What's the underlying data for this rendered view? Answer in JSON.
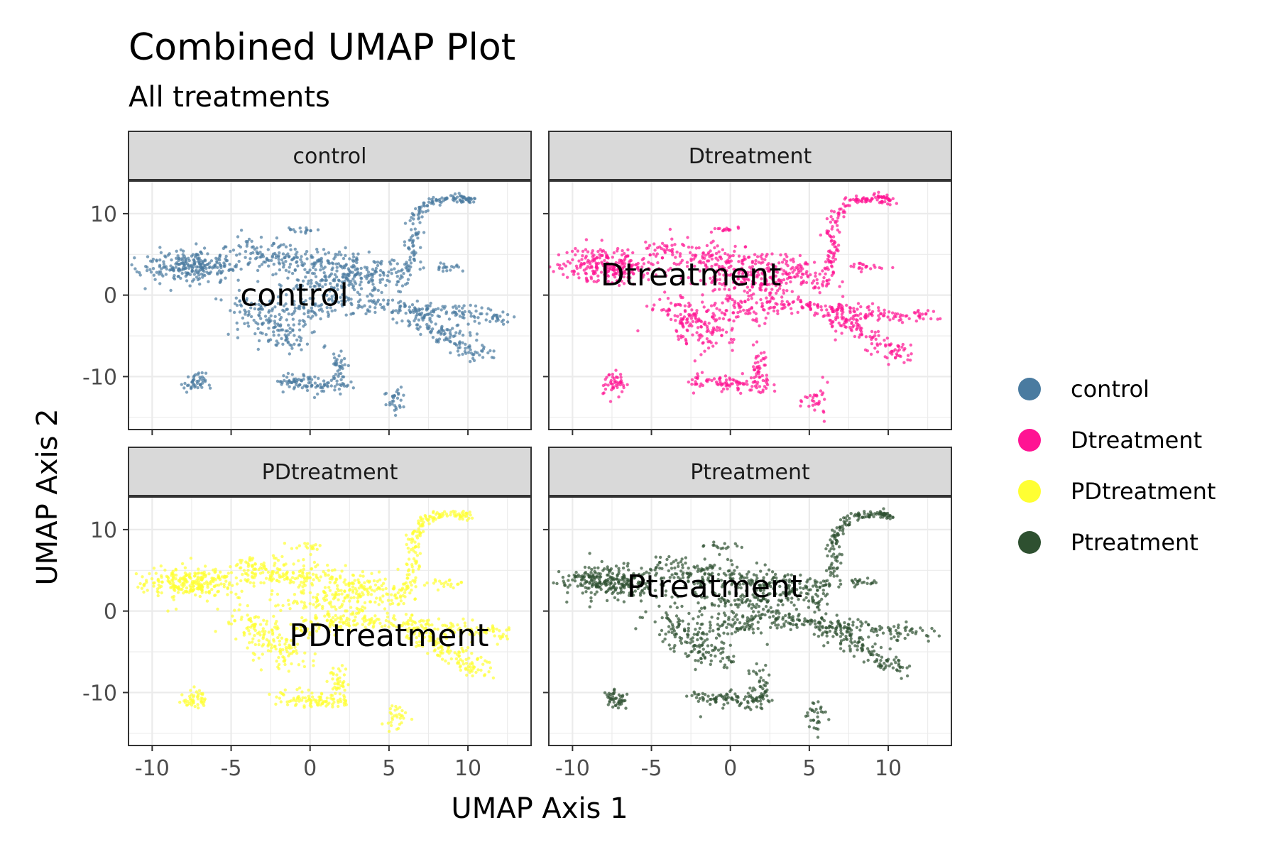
{
  "chart_data": {
    "type": "scatter",
    "title": "Combined UMAP Plot",
    "subtitle": "All treatments",
    "xlabel": "UMAP Axis 1",
    "ylabel": "UMAP Axis 2",
    "xlim": [
      -11.5,
      14
    ],
    "ylim": [
      -16.5,
      14
    ],
    "x_ticks": [
      -10,
      -5,
      0,
      5,
      10
    ],
    "x_tick_labels": [
      "-10",
      "-5",
      "0",
      "5",
      "10"
    ],
    "y_ticks": [
      -10,
      0,
      10
    ],
    "y_tick_labels": [
      "-10",
      "0",
      "10"
    ],
    "grid": true,
    "facets": [
      "control",
      "Dtreatment",
      "PDtreatment",
      "Ptreatment"
    ],
    "legend": {
      "position": "right",
      "entries": [
        {
          "name": "control",
          "color": "#4a7ba0"
        },
        {
          "name": "Dtreatment",
          "color": "#ff1493"
        },
        {
          "name": "PDtreatment",
          "color": "#ffff33"
        },
        {
          "name": "Ptreatment",
          "color": "#2e5030"
        }
      ]
    },
    "panel_labels": [
      {
        "facet": "control",
        "text": "control",
        "x": -1,
        "y": 0
      },
      {
        "facet": "Dtreatment",
        "text": "Dtreatment",
        "x": -2.5,
        "y": 2.5
      },
      {
        "facet": "PDtreatment",
        "text": "PDtreatment",
        "x": 5,
        "y": -3
      },
      {
        "facet": "Ptreatment",
        "text": "Ptreatment",
        "x": -1,
        "y": 3
      }
    ],
    "clusters": [
      {
        "name": "main-blob",
        "x": -7.5,
        "y": 3.5,
        "sx": 1.6,
        "sy": 1.0,
        "n": 260
      },
      {
        "name": "upper-band",
        "from": [
          -4.5,
          5.5
        ],
        "to": [
          5.5,
          2.5
        ],
        "spread": 0.9,
        "n": 260
      },
      {
        "name": "central-mass",
        "x": 1.5,
        "y": 1.5,
        "sx": 2.0,
        "sy": 0.9,
        "n": 120
      },
      {
        "name": "lower-arc",
        "from": [
          -4,
          -1
        ],
        "to": [
          -1,
          -6
        ],
        "spread": 0.9,
        "n": 150
      },
      {
        "name": "lower-mid",
        "from": [
          -1,
          -2
        ],
        "to": [
          3,
          -1
        ],
        "spread": 0.8,
        "n": 100
      },
      {
        "name": "right-arm",
        "from": [
          3,
          -1
        ],
        "to": [
          12.5,
          -2.8
        ],
        "spread": 0.5,
        "n": 140
      },
      {
        "name": "lower-right-arm",
        "from": [
          6,
          -2
        ],
        "to": [
          11,
          -7.5
        ],
        "spread": 0.6,
        "n": 130
      },
      {
        "name": "upper-hook",
        "path": [
          [
            5.5,
            0.5
          ],
          [
            6.5,
            5
          ],
          [
            6.5,
            9
          ],
          [
            7.5,
            11.5
          ],
          [
            9.5,
            12
          ],
          [
            10,
            11.5
          ]
        ],
        "spread": 0.25,
        "n": 160
      },
      {
        "name": "left-island",
        "x": -7.3,
        "y": -10.8,
        "sx": 0.35,
        "sy": 0.6,
        "n": 45
      },
      {
        "name": "bottom-triangle",
        "from": [
          -2,
          -10.5
        ],
        "to": [
          2.2,
          -11.2
        ],
        "spread": 0.5,
        "n": 90
      },
      {
        "name": "triangle-peak",
        "x": 1.8,
        "y": -9,
        "sx": 0.3,
        "sy": 1.2,
        "n": 40
      },
      {
        "name": "bottom-tail",
        "x": 5.5,
        "y": -13,
        "sx": 0.4,
        "sy": 1.0,
        "n": 30
      },
      {
        "name": "small-top",
        "x": -0.5,
        "y": 8,
        "sx": 0.6,
        "sy": 0.2,
        "n": 15
      },
      {
        "name": "right-dot",
        "x": 8.5,
        "y": 3.5,
        "sx": 0.6,
        "sy": 0.3,
        "n": 20
      }
    ]
  }
}
